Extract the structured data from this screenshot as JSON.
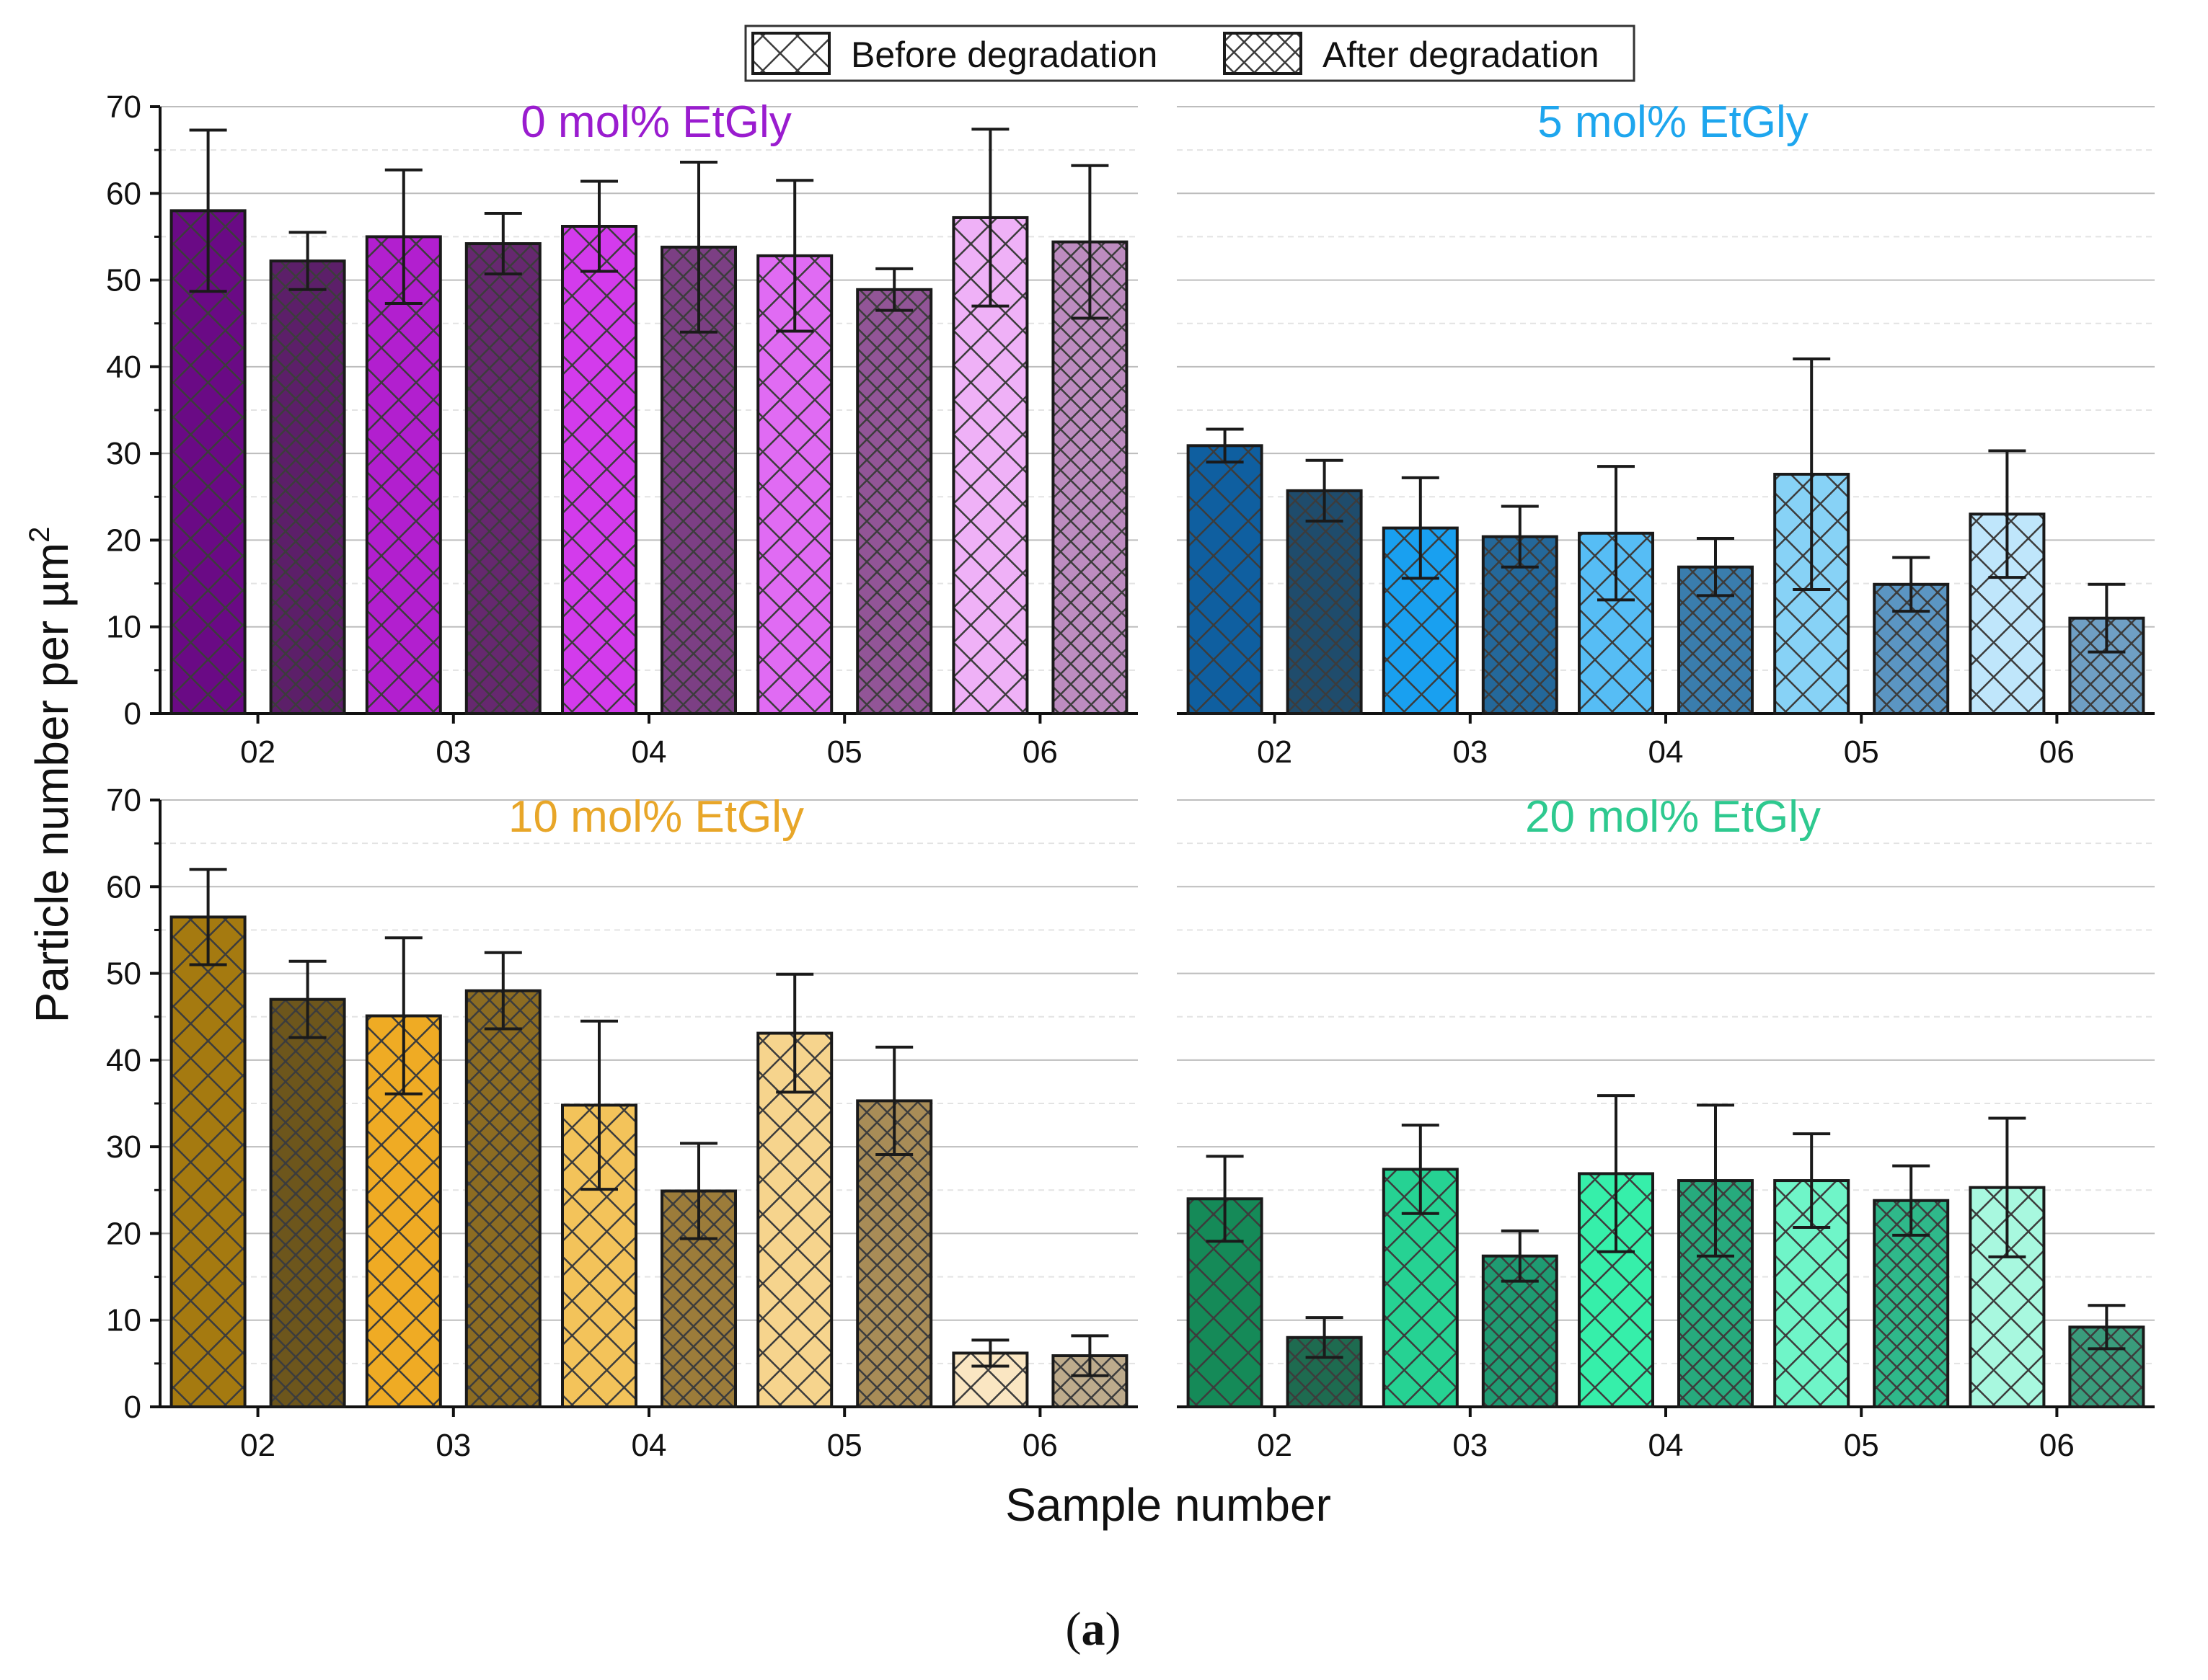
{
  "chart_data": {
    "type": "bar",
    "legend": {
      "position": "top-center",
      "entries": [
        {
          "name": "Before degradation",
          "pattern": "coarse-crosshatch"
        },
        {
          "name": "After degradation",
          "pattern": "fine-crosshatch"
        }
      ]
    },
    "ylabel": "Particle number per µm",
    "ylabel_superscript": "2",
    "xlabel": "Sample number",
    "caption_open": "(",
    "caption_letter": "a",
    "caption_close": ")",
    "ylim": [
      0,
      70
    ],
    "yticks": [
      "0",
      "10",
      "20",
      "30",
      "40",
      "50",
      "60",
      "70"
    ],
    "categories": [
      "02",
      "03",
      "04",
      "05",
      "06"
    ],
    "panels": [
      {
        "title": "0 mol% EtGly",
        "title_color": "#9a1ccf",
        "before": {
          "values": [
            58.0,
            55.0,
            56.2,
            52.8,
            57.2
          ],
          "errors": [
            9.3,
            7.7,
            5.2,
            8.7,
            10.2
          ]
        },
        "after": {
          "values": [
            52.2,
            54.2,
            53.8,
            48.9,
            54.4
          ],
          "errors": [
            3.3,
            3.5,
            9.8,
            2.4,
            8.8
          ]
        },
        "before_colors": [
          "#6a0a85",
          "#b21fcf",
          "#d33bec",
          "#e06bf3",
          "#efb1f7"
        ],
        "after_colors": [
          "#5c1f69",
          "#66286f",
          "#7c3f84",
          "#925597",
          "#bd8cc0"
        ]
      },
      {
        "title": "5 mol% EtGly",
        "title_color": "#1ea6ee",
        "before": {
          "values": [
            30.9,
            21.4,
            20.8,
            27.6,
            23.0
          ],
          "errors": [
            1.9,
            5.8,
            7.7,
            13.3,
            7.3
          ]
        },
        "after": {
          "values": [
            25.7,
            20.4,
            16.9,
            14.9,
            11.0
          ],
          "errors": [
            3.5,
            3.5,
            3.3,
            3.1,
            3.9
          ]
        },
        "before_colors": [
          "#0f5fa0",
          "#19a0f0",
          "#56bdf5",
          "#87d2f6",
          "#bfe6fb"
        ],
        "after_colors": [
          "#1f4c6c",
          "#24689a",
          "#3a7dad",
          "#5b95c2",
          "#6f9fc4"
        ]
      },
      {
        "title": "10 mol% EtGly",
        "title_color": "#e8a628",
        "before": {
          "values": [
            56.5,
            45.1,
            34.8,
            43.1,
            6.2
          ],
          "errors": [
            5.5,
            9.0,
            9.7,
            6.8,
            1.5
          ]
        },
        "after": {
          "values": [
            47.0,
            48.0,
            24.9,
            35.3,
            5.9
          ],
          "errors": [
            4.4,
            4.4,
            5.5,
            6.2,
            2.3
          ]
        },
        "before_colors": [
          "#a57a10",
          "#efab24",
          "#f3c35a",
          "#f6d48d",
          "#fae6c2"
        ],
        "after_colors": [
          "#6d561c",
          "#8c6c22",
          "#9c7c3a",
          "#a88c57",
          "#bdab8c"
        ]
      },
      {
        "title": "20 mol% EtGly",
        "title_color": "#2ec98f",
        "before": {
          "values": [
            24.0,
            27.4,
            26.9,
            26.1,
            25.3
          ],
          "errors": [
            4.9,
            5.1,
            9.0,
            5.4,
            8.0
          ]
        },
        "after": {
          "values": [
            8.0,
            17.4,
            26.1,
            23.8,
            9.2
          ],
          "errors": [
            2.3,
            2.9,
            8.7,
            4.0,
            2.5
          ]
        },
        "before_colors": [
          "#158a58",
          "#26d293",
          "#36efaa",
          "#6ff5c8",
          "#a8f8df"
        ],
        "after_colors": [
          "#1e6b50",
          "#1f9b72",
          "#27aa7d",
          "#2fb88a",
          "#3a9c7c"
        ]
      }
    ]
  }
}
